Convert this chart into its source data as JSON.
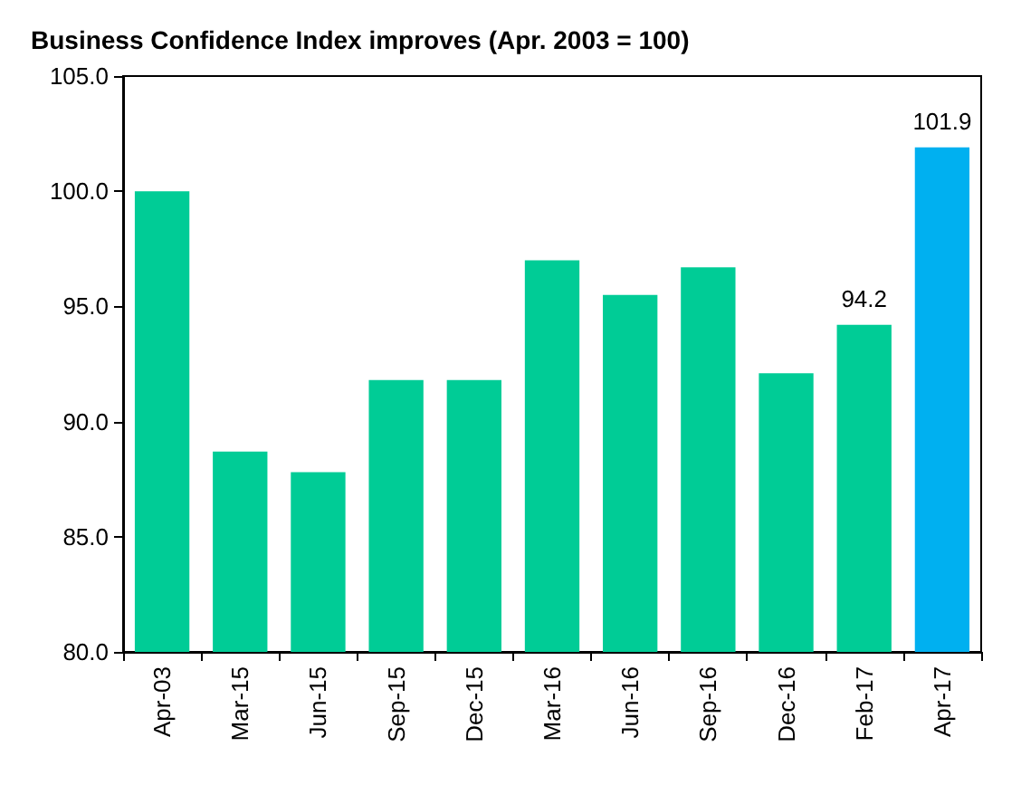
{
  "chart_data": {
    "type": "bar",
    "title": "Business Confidence Index improves (Apr. 2003 = 100)",
    "categories": [
      "Apr-03",
      "Mar-15",
      "Jun-15",
      "Sep-15",
      "Dec-15",
      "Mar-16",
      "Jun-16",
      "Sep-16",
      "Dec-16",
      "Feb-17",
      "Apr-17"
    ],
    "values": [
      100.0,
      88.7,
      87.8,
      91.8,
      91.8,
      97.0,
      95.5,
      96.7,
      92.1,
      94.2,
      101.9
    ],
    "colors": [
      "#00cc96",
      "#00cc96",
      "#00cc96",
      "#00cc96",
      "#00cc96",
      "#00cc96",
      "#00cc96",
      "#00cc96",
      "#00cc96",
      "#00cc96",
      "#00b0f0"
    ],
    "value_labels": [
      null,
      null,
      null,
      null,
      null,
      null,
      null,
      null,
      null,
      "94.2",
      "101.9"
    ],
    "ylim": [
      80,
      105
    ],
    "yticks": [
      {
        "value": 80,
        "label": "80.0"
      },
      {
        "value": 85,
        "label": "85.0"
      },
      {
        "value": 90,
        "label": "90.0"
      },
      {
        "value": 95,
        "label": "95.0"
      },
      {
        "value": 100,
        "label": "100.0"
      },
      {
        "value": 105,
        "label": "105.0"
      }
    ],
    "grid": false
  }
}
